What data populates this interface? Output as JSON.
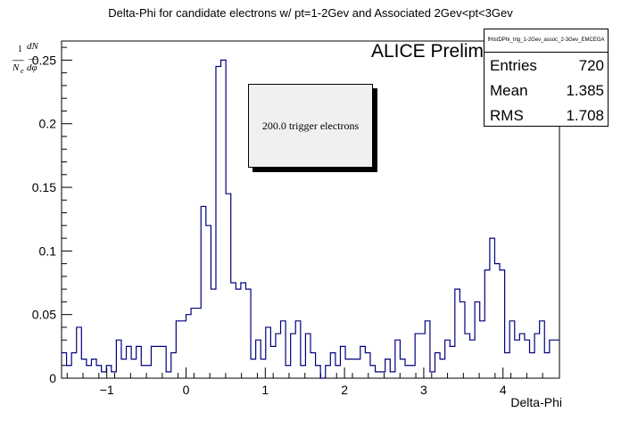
{
  "chart_data": {
    "type": "bar",
    "title": "Delta-Phi for candidate electrons w/ pt=1-2Gev and Associated 2Gev<pt<3Gev",
    "xlabel": "Delta-Phi",
    "ylabel": "1/N_e dN/dphi",
    "xlim": [
      -1.5708,
      4.7124
    ],
    "ylim": [
      0,
      0.265
    ],
    "xticks": [
      "−1",
      "0",
      "1",
      "2",
      "3",
      "4"
    ],
    "yticks": [
      "0",
      "0.05",
      "0.1",
      "0.15",
      "0.2",
      "0.25"
    ],
    "bins": 100,
    "values": [
      0.02,
      0.01,
      0.02,
      0.04,
      0.015,
      0.01,
      0.015,
      0.01,
      0.005,
      0.01,
      0.005,
      0.03,
      0.015,
      0.025,
      0.015,
      0.025,
      0.01,
      0.01,
      0.025,
      0.025,
      0.025,
      0.005,
      0.02,
      0.045,
      0.045,
      0.05,
      0.055,
      0.055,
      0.135,
      0.12,
      0.07,
      0.245,
      0.25,
      0.145,
      0.075,
      0.07,
      0.075,
      0.07,
      0.015,
      0.03,
      0.015,
      0.04,
      0.025,
      0.035,
      0.045,
      0.01,
      0.035,
      0.045,
      0.01,
      0.035,
      0.02,
      0.01,
      0.0,
      0.01,
      0.02,
      0.01,
      0.025,
      0.015,
      0.015,
      0.015,
      0.025,
      0.02,
      0.01,
      0.005,
      0.005,
      0.015,
      0.005,
      0.03,
      0.015,
      0.01,
      0.01,
      0.035,
      0.035,
      0.045,
      0.005,
      0.02,
      0.015,
      0.03,
      0.025,
      0.07,
      0.06,
      0.035,
      0.03,
      0.06,
      0.045,
      0.085,
      0.11,
      0.09,
      0.085,
      0.02,
      0.045,
      0.03,
      0.035,
      0.03,
      0.02,
      0.035,
      0.045,
      0.02,
      0.03,
      0.03
    ]
  },
  "annotation": "ALICE Preliminary",
  "trigger_box": "200.0 trigger electrons",
  "stats": {
    "name": "fHistDPhi_trig_1-2Gev_assoc_2-3Gev_EMCEGA",
    "rows": [
      {
        "label": "Entries",
        "value": "720"
      },
      {
        "label": "Mean",
        "value": "1.385"
      },
      {
        "label": "RMS",
        "value": "1.708"
      }
    ]
  },
  "colors": {
    "line": "#00007f",
    "frame": "#000000",
    "box_fill": "#f0f0f0"
  }
}
